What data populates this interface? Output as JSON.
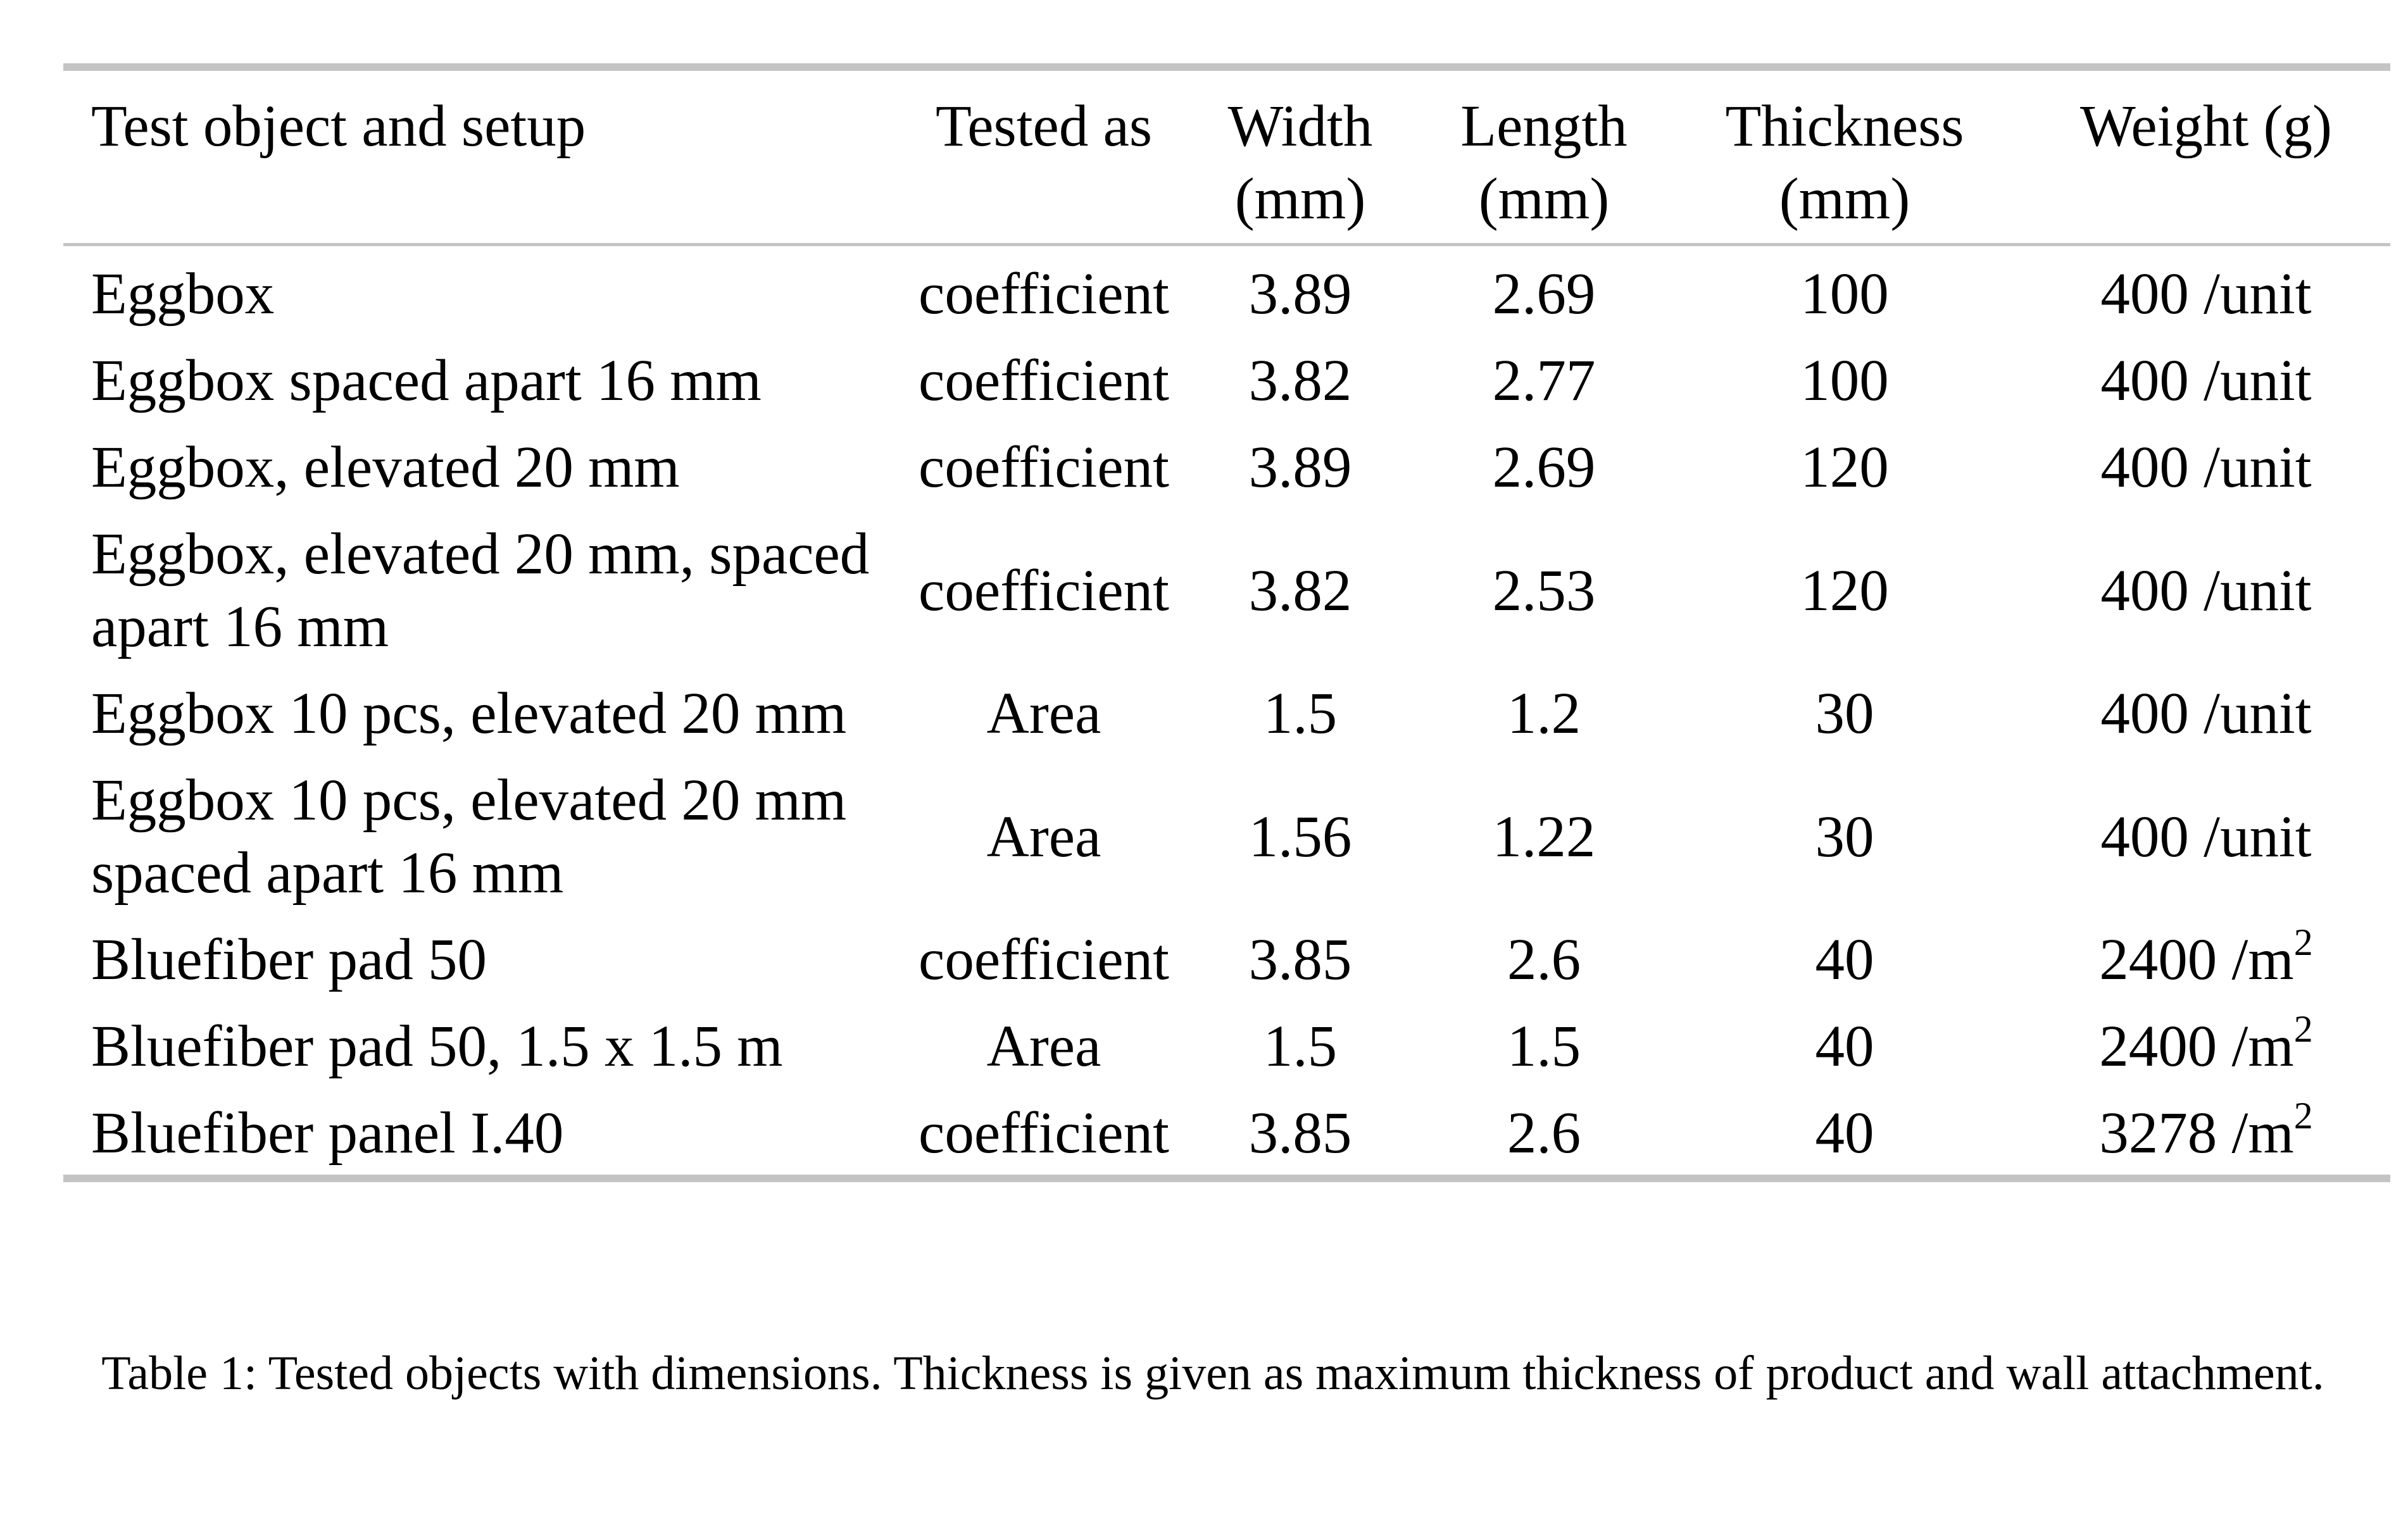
{
  "table": {
    "headers": {
      "object": "Test object and setup",
      "tested_as": "Tested as",
      "width": "Width (mm)",
      "length": "Length (mm)",
      "thickness": "Thickness (mm)",
      "weight": "Weight (g)"
    },
    "rows": [
      {
        "object": "Eggbox",
        "tested_as": "coefficient",
        "width": "3.89",
        "length": "2.69",
        "thickness": "100",
        "weight": "400 /unit",
        "weight_sup": ""
      },
      {
        "object": "Eggbox spaced apart 16 mm",
        "tested_as": "coefficient",
        "width": "3.82",
        "length": "2.77",
        "thickness": "100",
        "weight": "400 /unit",
        "weight_sup": ""
      },
      {
        "object": "Eggbox, elevated 20 mm",
        "tested_as": "coefficient",
        "width": "3.89",
        "length": "2.69",
        "thickness": "120",
        "weight": "400 /unit",
        "weight_sup": ""
      },
      {
        "object": "Eggbox, elevated 20 mm, spaced apart 16 mm",
        "tested_as": "coefficient",
        "width": "3.82",
        "length": "2.53",
        "thickness": "120",
        "weight": "400 /unit",
        "weight_sup": ""
      },
      {
        "object": "Eggbox 10 pcs, elevated 20 mm",
        "tested_as": "Area",
        "width": "1.5",
        "length": "1.2",
        "thickness": "30",
        "weight": "400 /unit",
        "weight_sup": ""
      },
      {
        "object": "Eggbox 10 pcs, elevated 20 mm spaced apart 16 mm",
        "tested_as": "Area",
        "width": "1.56",
        "length": "1.22",
        "thickness": "30",
        "weight": "400 /unit",
        "weight_sup": ""
      },
      {
        "object": "Bluefiber pad 50",
        "tested_as": "coefficient",
        "width": "3.85",
        "length": "2.6",
        "thickness": "40",
        "weight": "2400 /m",
        "weight_sup": "2"
      },
      {
        "object": "Bluefiber pad 50, 1.5 x 1.5 m",
        "tested_as": "Area",
        "width": "1.5",
        "length": "1.5",
        "thickness": "40",
        "weight": "2400 /m",
        "weight_sup": "2"
      },
      {
        "object": "Bluefiber panel I.40",
        "tested_as": "coefficient",
        "width": "3.85",
        "length": "2.6",
        "thickness": "40",
        "weight": "3278 /m",
        "weight_sup": "2"
      }
    ]
  },
  "caption": "Table 1: Tested objects with dimensions. Thickness is given as maximum thickness of product and wall attachment."
}
